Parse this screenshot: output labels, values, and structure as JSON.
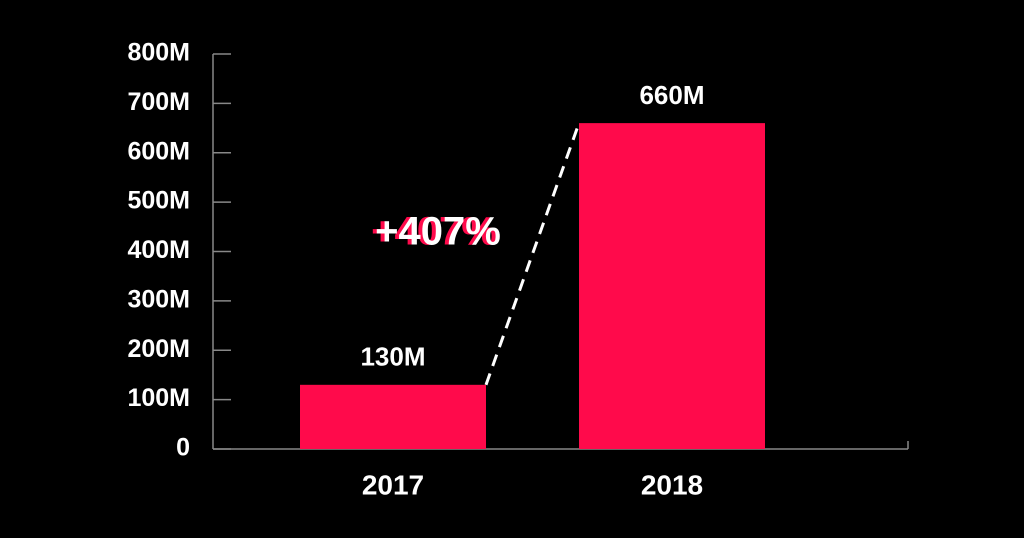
{
  "chart_data": {
    "type": "bar",
    "categories": [
      "2017",
      "2018"
    ],
    "values": [
      130000000,
      660000000
    ],
    "value_labels": [
      "130M",
      "660M"
    ],
    "color": "#ff0a4b",
    "ylim": [
      0,
      800000000
    ],
    "yticks": [
      0,
      {
        "value": 100000000,
        "label": "100M"
      },
      {
        "value": 200000000,
        "label": "200M"
      },
      {
        "value": 300000000,
        "label": "300M"
      },
      {
        "value": 400000000,
        "label": "400M"
      },
      {
        "value": 500000000,
        "label": "500M"
      },
      {
        "value": 600000000,
        "label": "600M"
      },
      {
        "value": 700000000,
        "label": "700M"
      },
      {
        "value": 800000000,
        "label": "800M"
      }
    ],
    "annotation": "+407%"
  }
}
